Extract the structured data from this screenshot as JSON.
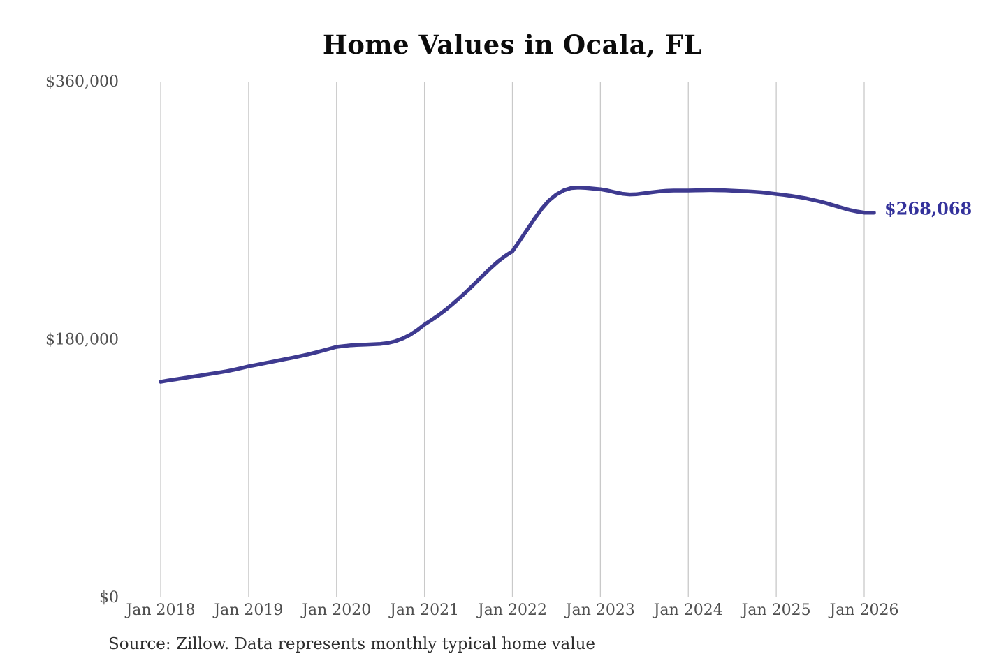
{
  "chart": {
    "title": "Home Values in Ocala, FL",
    "end_label_text": "$268,068",
    "source_note": "Source: Zillow. Data represents monthly typical home value"
  },
  "colors": {
    "line": "#3E3A90",
    "end_label": "#33319B",
    "gridline": "#C9C9C9",
    "axis_text": "#4F4F4F",
    "title_text": "#0B0B0B",
    "source_text": "#2E2E2E",
    "background": "#FFFFFF"
  },
  "chart_data": {
    "type": "line",
    "title": "Home Values in Ocala, FL",
    "unit": "USD",
    "frequency": "monthly",
    "x_tick_labels": [
      "Jan 2018",
      "Jan 2019",
      "Jan 2020",
      "Jan 2021",
      "Jan 2022",
      "Jan 2023",
      "Jan 2024",
      "Jan 2025",
      "Jan 2026"
    ],
    "y_ticks": [
      {
        "value": 0,
        "label": "$0"
      },
      {
        "value": 180000,
        "label": "$180,000"
      },
      {
        "value": 360000,
        "label": "$360,000"
      }
    ],
    "ylim": [
      0,
      360000
    ],
    "grid": "vertical-only",
    "legend": "none",
    "series": [
      {
        "name": "Typical home value",
        "start": "Jan 2018",
        "end": "Jan 2026",
        "end_value": 268068,
        "values": [
          150000,
          150900,
          151700,
          152500,
          153300,
          154100,
          154900,
          155700,
          156500,
          157400,
          158400,
          159600,
          160800,
          161800,
          162800,
          163800,
          164800,
          165800,
          166800,
          167900,
          169000,
          170300,
          171600,
          173000,
          174400,
          175000,
          175500,
          175800,
          176000,
          176200,
          176500,
          177100,
          178300,
          180200,
          182700,
          186000,
          190000,
          193300,
          196800,
          200700,
          205000,
          209500,
          214300,
          219300,
          224300,
          229300,
          233900,
          237800,
          241100,
          248500,
          256200,
          263800,
          270800,
          276600,
          280800,
          283600,
          285200,
          285600,
          285300,
          284900,
          284400,
          283500,
          282300,
          281300,
          280800,
          281000,
          281600,
          282300,
          282900,
          283300,
          283500,
          283500,
          283500,
          283600,
          283700,
          283800,
          283700,
          283600,
          283400,
          283200,
          283000,
          282700,
          282300,
          281700,
          281100,
          280500,
          279800,
          279000,
          278100,
          277000,
          275800,
          274400,
          272900,
          271400,
          270000,
          268900,
          268068
        ]
      }
    ]
  }
}
